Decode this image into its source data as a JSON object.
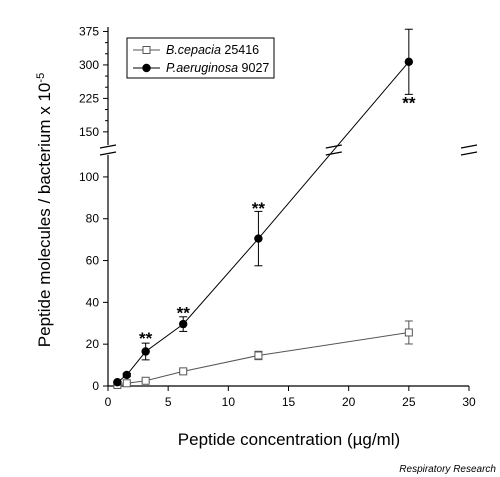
{
  "chart_data": {
    "type": "scatter",
    "xlabel": "Peptide concentration (µg/ml)",
    "ylabel": "Peptide molecules / bacterium x 10",
    "ylabel_superscript": "-5",
    "source": "Respiratory Research",
    "grid": false,
    "legend_position": "top-left",
    "xlim": [
      0,
      30
    ],
    "x_ticks": [
      0,
      5,
      10,
      15,
      20,
      25,
      30
    ],
    "y_axis_broken": true,
    "y_lower_lim": [
      0,
      110
    ],
    "y_lower_ticks": [
      0,
      20,
      40,
      60,
      80,
      100
    ],
    "y_upper_lim": [
      125,
      385
    ],
    "y_upper_ticks": [
      150,
      175,
      200,
      225,
      250,
      275,
      300,
      325,
      350,
      375
    ],
    "series": [
      {
        "name": "B.cepacia 25416",
        "marker": "open-square",
        "color": "#555555",
        "points": [
          {
            "x": 0.78,
            "y": 0.5,
            "err": 0.3
          },
          {
            "x": 1.56,
            "y": 1.3,
            "err": 0.3
          },
          {
            "x": 3.13,
            "y": 2.5,
            "err": 0.6
          },
          {
            "x": 6.25,
            "y": 7.0,
            "err": 1.0
          },
          {
            "x": 12.5,
            "y": 14.6,
            "err": 2.0
          },
          {
            "x": 25,
            "y": 25.6,
            "err": 5.5
          }
        ]
      },
      {
        "name": "P.aeruginosa 9027",
        "marker": "filled-circle",
        "color": "#000000",
        "points": [
          {
            "x": 0.78,
            "y": 1.8,
            "err": 0.4
          },
          {
            "x": 1.56,
            "y": 5.3,
            "err": 0.8
          },
          {
            "x": 3.13,
            "y": 16.5,
            "err": 4.0
          },
          {
            "x": 6.25,
            "y": 29.6,
            "err": 3.5
          },
          {
            "x": 12.5,
            "y": 70.5,
            "err": 13.0
          },
          {
            "x": 25,
            "y": 307,
            "err": 73
          }
        ]
      }
    ],
    "annotations": [
      {
        "text": "**",
        "x": 3.13,
        "y": 24
      },
      {
        "text": "**",
        "x": 6.25,
        "y": 36
      },
      {
        "text": "**",
        "x": 12.5,
        "y": 86
      },
      {
        "text": "**",
        "x": 25,
        "y": 220
      }
    ]
  }
}
